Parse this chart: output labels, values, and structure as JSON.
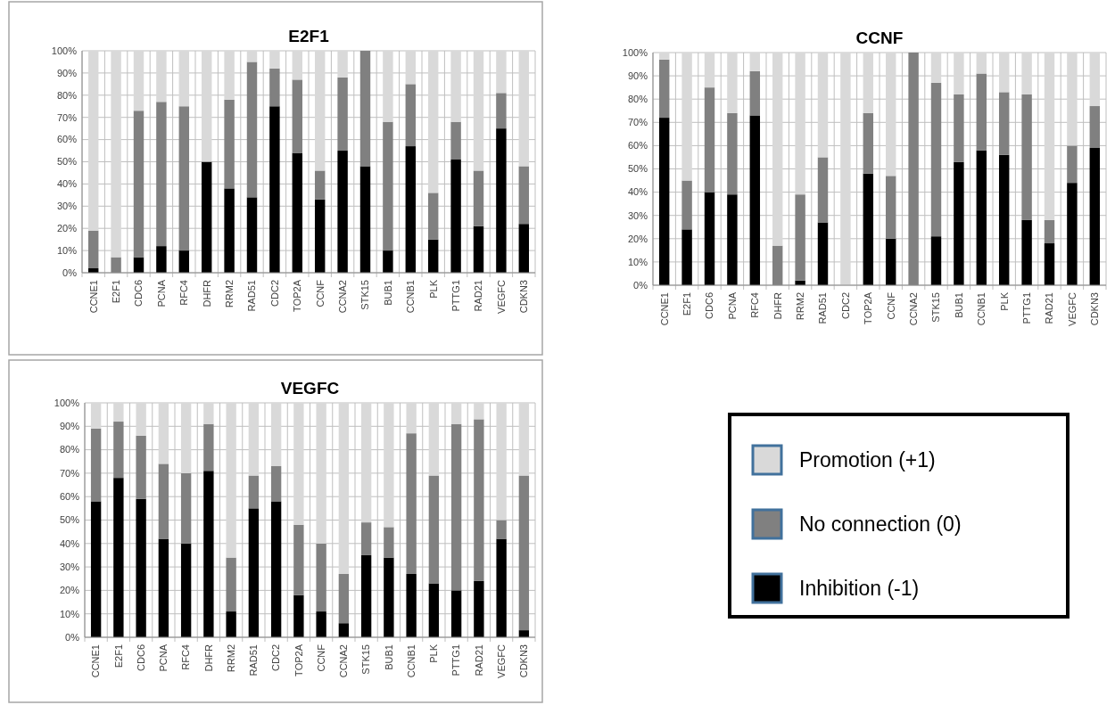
{
  "chart_data": [
    {
      "type": "bar",
      "title": "E2F1",
      "stacked": true,
      "grid": true,
      "categories": [
        "CCNE1",
        "E2F1",
        "CDC6",
        "PCNA",
        "RFC4",
        "DHFR",
        "RRM2",
        "RAD51",
        "CDC2",
        "TOP2A",
        "CCNF",
        "CCNA2",
        "STK15",
        "BUB1",
        "CCNB1",
        "PLK",
        "PTTG1",
        "RAD21",
        "VEGFC",
        "CDKN3"
      ],
      "ylim": [
        0,
        100
      ],
      "yticks": [
        {
          "value": 0,
          "label": "0%"
        },
        {
          "value": 10,
          "label": "10%"
        },
        {
          "value": 20,
          "label": "20%"
        },
        {
          "value": 30,
          "label": "30%"
        },
        {
          "value": 40,
          "label": "40%"
        },
        {
          "value": 50,
          "label": "50%"
        },
        {
          "value": 60,
          "label": "60%"
        },
        {
          "value": 70,
          "label": "70%"
        },
        {
          "value": 80,
          "label": "80%"
        },
        {
          "value": 90,
          "label": "90%"
        },
        {
          "value": 100,
          "label": "100%"
        }
      ],
      "series": [
        {
          "color": "#000000",
          "values": [
            2,
            null,
            7,
            12,
            10,
            50,
            38,
            34,
            75,
            54,
            33,
            55,
            48,
            10,
            57,
            15,
            51,
            21,
            65,
            22
          ]
        },
        {
          "color": "#808080",
          "values": [
            17,
            7,
            66,
            65,
            65,
            0,
            40,
            61,
            17,
            33,
            13,
            33,
            52,
            58,
            28,
            21,
            17,
            25,
            16,
            26
          ]
        },
        {
          "color": "#d9d9d9",
          "values": [
            81,
            93,
            27,
            23,
            25,
            50,
            22,
            5,
            8,
            13,
            54,
            12,
            0,
            32,
            15,
            64,
            32,
            54,
            19,
            52
          ]
        }
      ]
    },
    {
      "type": "bar",
      "title": "CCNF",
      "stacked": true,
      "grid": true,
      "categories": [
        "CCNE1",
        "E2F1",
        "CDC6",
        "PCNA",
        "RFC4",
        "DHFR",
        "RRM2",
        "RAD51",
        "CDC2",
        "TOP2A",
        "CCNF",
        "CCNA2",
        "STK15",
        "BUB1",
        "CCNB1",
        "PLK",
        "PTTG1",
        "RAD21",
        "VEGFC",
        "CDKN3"
      ],
      "ylim": [
        0,
        100
      ],
      "yticks": [
        {
          "value": 0,
          "label": "0%"
        },
        {
          "value": 10,
          "label": "10%"
        },
        {
          "value": 20,
          "label": "20%"
        },
        {
          "value": 30,
          "label": "30%"
        },
        {
          "value": 40,
          "label": "40%"
        },
        {
          "value": 50,
          "label": "50%"
        },
        {
          "value": 60,
          "label": "60%"
        },
        {
          "value": 70,
          "label": "70%"
        },
        {
          "value": 80,
          "label": "80%"
        },
        {
          "value": 90,
          "label": "90%"
        },
        {
          "value": 100,
          "label": "100%"
        }
      ],
      "series": [
        {
          "color": "#000000",
          "values": [
            72,
            24,
            40,
            39,
            73,
            0,
            2,
            27,
            0,
            48,
            20,
            0,
            21,
            53,
            58,
            56,
            28,
            18,
            44,
            59
          ]
        },
        {
          "color": "#808080",
          "values": [
            25,
            21,
            45,
            35,
            19,
            17,
            37,
            28,
            0,
            26,
            27,
            100,
            66,
            29,
            33,
            27,
            54,
            10,
            16,
            18
          ]
        },
        {
          "color": "#d9d9d9",
          "values": [
            3,
            55,
            15,
            26,
            8,
            83,
            61,
            45,
            100,
            26,
            53,
            0,
            13,
            18,
            9,
            17,
            18,
            72,
            40,
            23
          ]
        }
      ]
    },
    {
      "type": "bar",
      "title": "VEGFC",
      "stacked": true,
      "grid": true,
      "legend": "right",
      "categories": [
        "CCNE1",
        "E2F1",
        "CDC6",
        "PCNA",
        "RFC4",
        "DHFR",
        "RRM2",
        "RAD51",
        "CDC2",
        "TOP2A",
        "CCNF",
        "CCNA2",
        "STK15",
        "BUB1",
        "CCNB1",
        "PLK",
        "PTTG1",
        "RAD21",
        "VEGFC",
        "CDKN3"
      ],
      "ylim": [
        0,
        100
      ],
      "yticks": [
        {
          "value": 0,
          "label": "0%"
        },
        {
          "value": 10,
          "label": "10%"
        },
        {
          "value": 20,
          "label": "20%"
        },
        {
          "value": 30,
          "label": "30%"
        },
        {
          "value": 40,
          "label": "40%"
        },
        {
          "value": 50,
          "label": "50%"
        },
        {
          "value": 60,
          "label": "60%"
        },
        {
          "value": 70,
          "label": "70%"
        },
        {
          "value": 80,
          "label": "80%"
        },
        {
          "value": 90,
          "label": "90%"
        },
        {
          "value": 100,
          "label": "100%"
        }
      ],
      "series": [
        {
          "name": "Inhibition (-1)",
          "color": "#000000",
          "values": [
            58,
            68,
            59,
            42,
            40,
            71,
            11,
            55,
            58,
            18,
            11,
            6,
            35,
            34,
            27,
            23,
            20,
            24,
            42,
            3
          ]
        },
        {
          "name": "No connection (0)",
          "color": "#808080",
          "values": [
            31,
            24,
            27,
            32,
            30,
            20,
            23,
            14,
            15,
            30,
            29,
            21,
            14,
            13,
            60,
            46,
            71,
            69,
            8,
            66
          ]
        },
        {
          "name": "Promotion (+1)",
          "color": "#d9d9d9",
          "values": [
            11,
            8,
            14,
            26,
            30,
            9,
            66,
            31,
            27,
            52,
            60,
            73,
            51,
            53,
            13,
            31,
            9,
            7,
            50,
            31
          ]
        }
      ]
    }
  ]
}
